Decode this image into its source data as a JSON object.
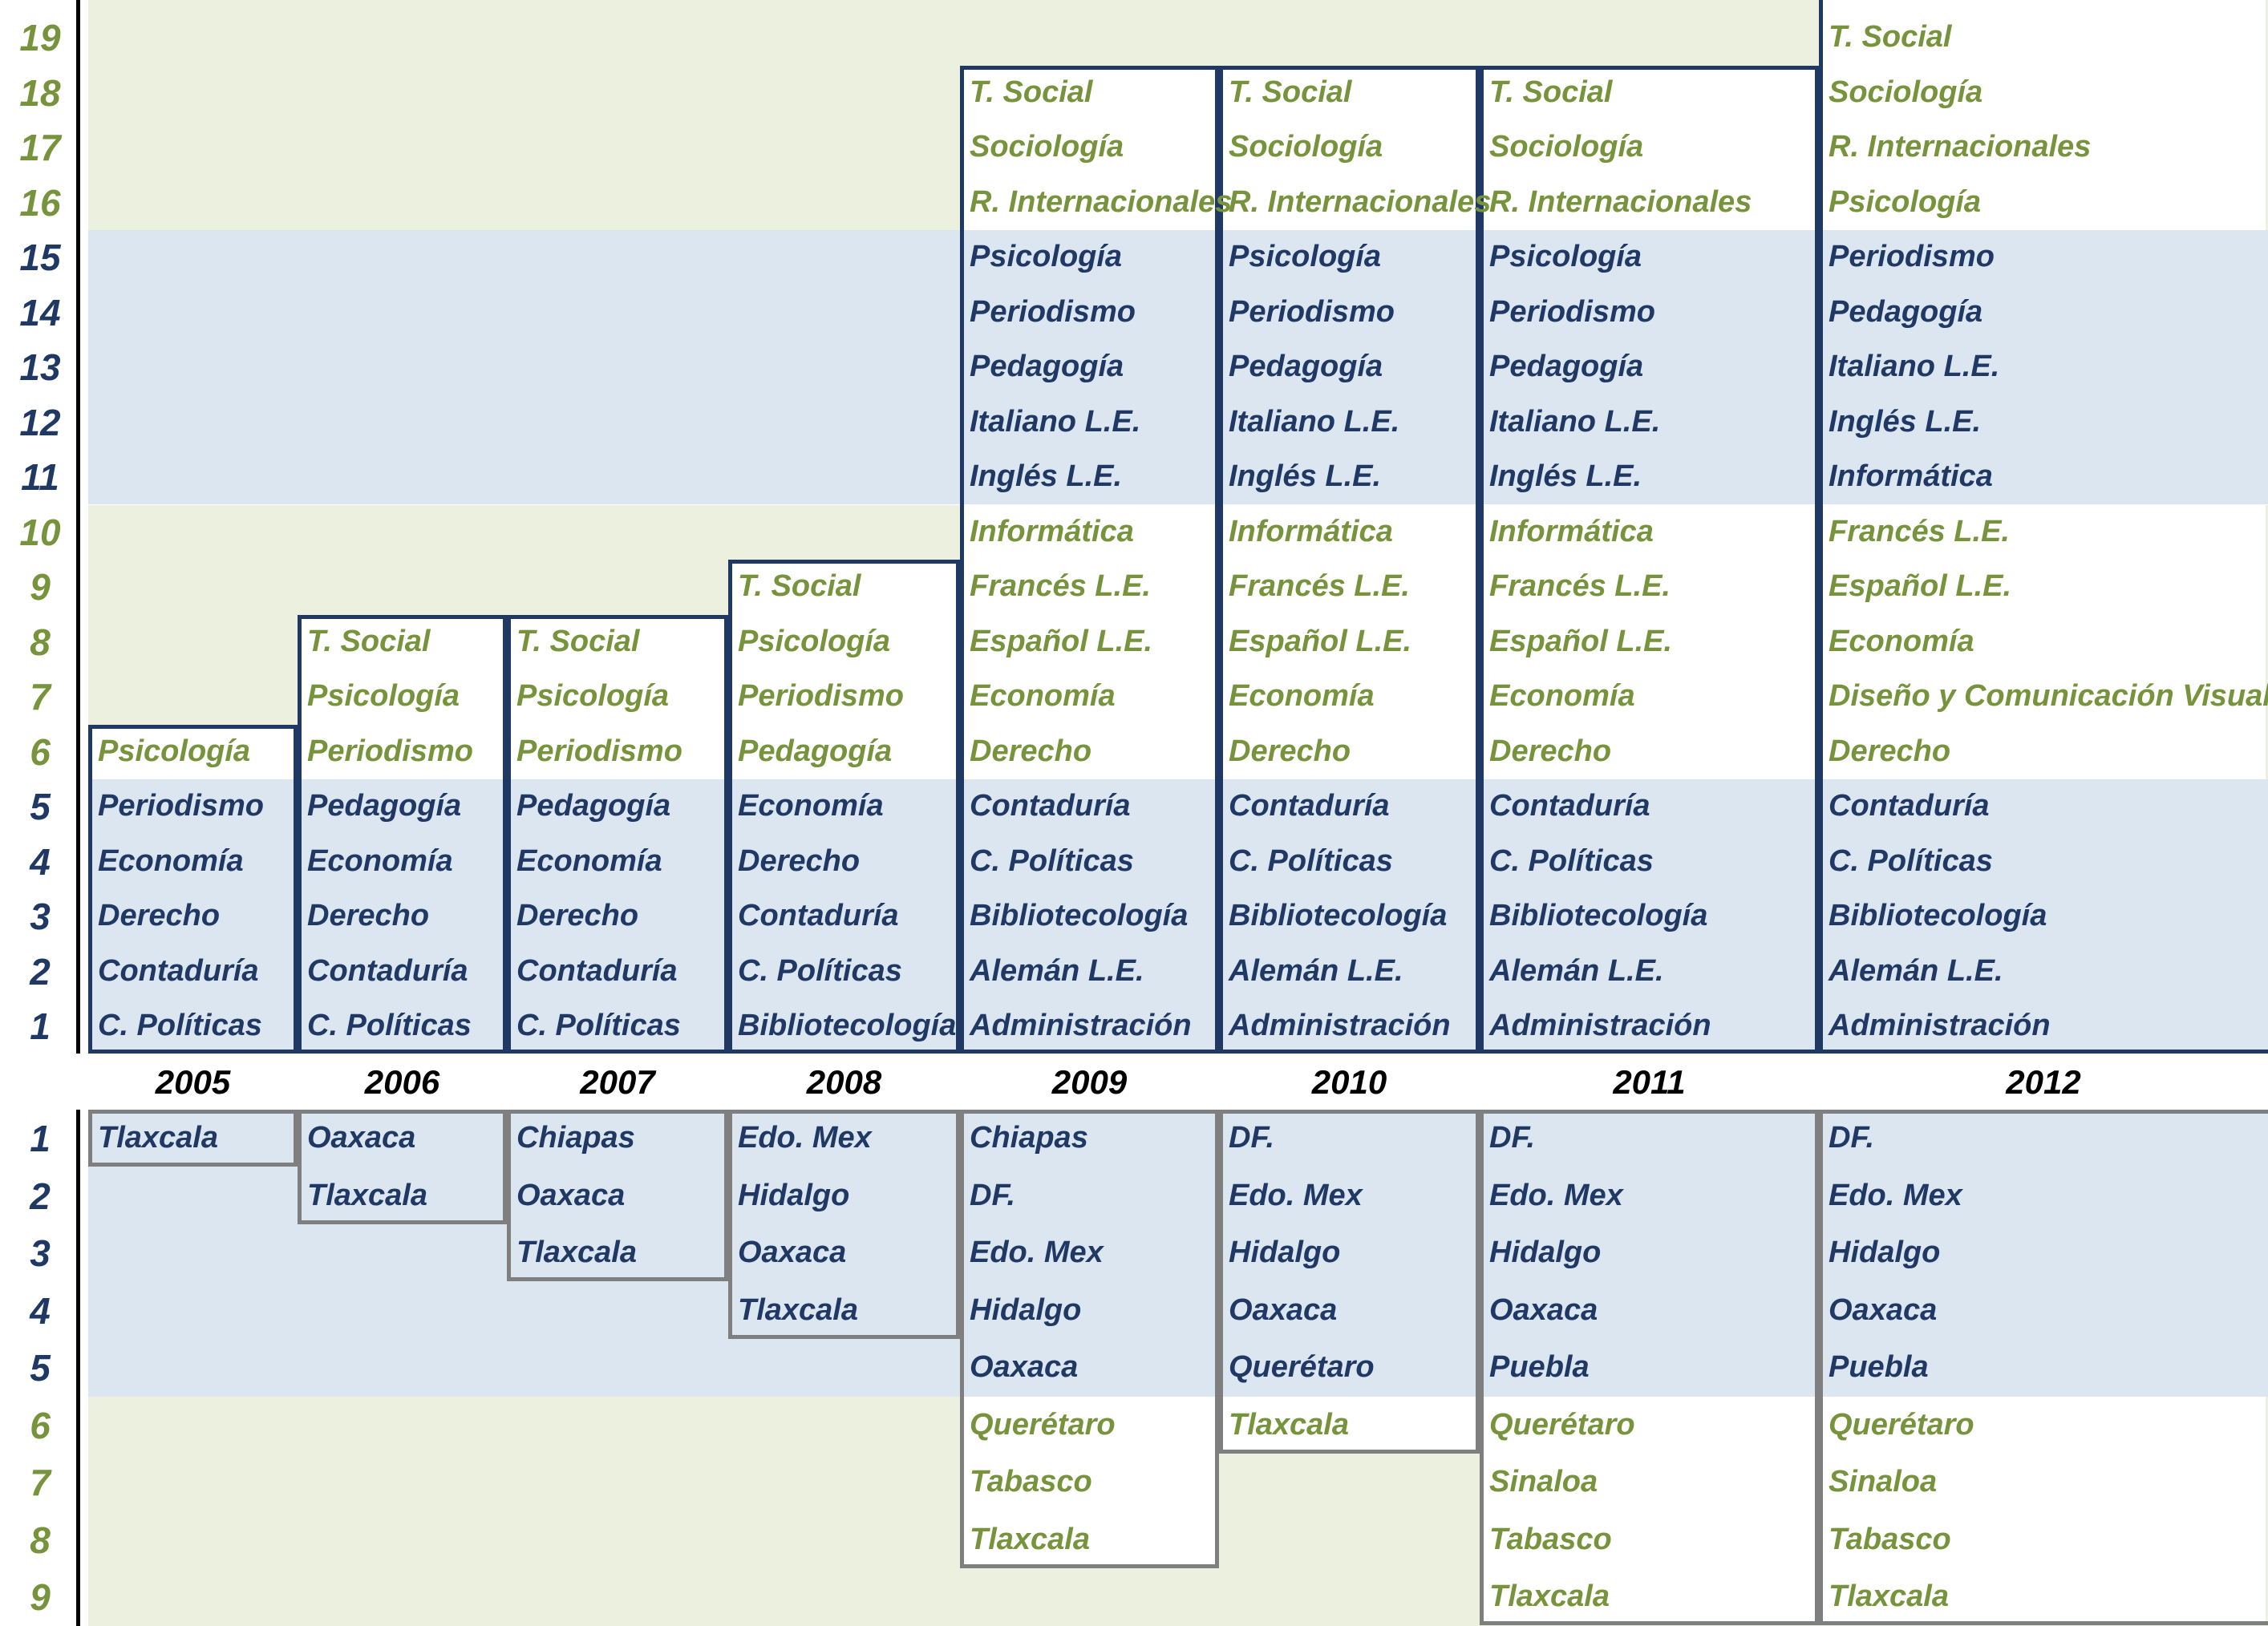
{
  "colors": {
    "green_text": "#77933c",
    "blue_text": "#1f3864",
    "green_band": "#ebf1de",
    "blue_band": "#dce6f0",
    "top_box_border": "#1f3864",
    "bottom_box_border": "#7f7f7f"
  },
  "years": [
    "2005",
    "2006",
    "2007",
    "2008",
    "2009",
    "2010",
    "2011",
    "2012"
  ],
  "top_row_numbers": [
    "19",
    "18",
    "17",
    "16",
    "15",
    "14",
    "13",
    "12",
    "11",
    "10",
    "9",
    "8",
    "7",
    "6",
    "5",
    "4",
    "3",
    "2",
    "1"
  ],
  "bottom_row_numbers": [
    "1",
    "2",
    "3",
    "4",
    "5",
    "6",
    "7",
    "8",
    "9"
  ],
  "careers": [
    [
      "C. Políticas",
      "Contaduría",
      "Derecho",
      "Economía",
      "Periodismo",
      "Psicología"
    ],
    [
      "C. Políticas",
      "Contaduría",
      "Derecho",
      "Economía",
      "Pedagogía",
      "Periodismo",
      "Psicología",
      "T. Social"
    ],
    [
      "C. Políticas",
      "Contaduría",
      "Derecho",
      "Economía",
      "Pedagogía",
      "Periodismo",
      "Psicología",
      "T. Social"
    ],
    [
      "Bibliotecología",
      "C. Políticas",
      "Contaduría",
      "Derecho",
      "Economía",
      "Pedagogía",
      "Periodismo",
      "Psicología",
      "T. Social"
    ],
    [
      "Administración",
      "Alemán L.E.",
      "Bibliotecología",
      "C. Políticas",
      "Contaduría",
      "Derecho",
      "Economía",
      "Español L.E.",
      "Francés L.E.",
      "Informática",
      "Inglés L.E.",
      "Italiano L.E.",
      "Pedagogía",
      "Periodismo",
      "Psicología",
      "R. Internacionales",
      "Sociología",
      "T. Social"
    ],
    [
      "Administración",
      "Alemán L.E.",
      "Bibliotecología",
      "C. Políticas",
      "Contaduría",
      "Derecho",
      "Economía",
      "Español L.E.",
      "Francés L.E.",
      "Informática",
      "Inglés L.E.",
      "Italiano L.E.",
      "Pedagogía",
      "Periodismo",
      "Psicología",
      "R. Internacionales",
      "Sociología",
      "T. Social"
    ],
    [
      "Administración",
      "Alemán L.E.",
      "Bibliotecología",
      "C. Políticas",
      "Contaduría",
      "Derecho",
      "Economía",
      "Español L.E.",
      "Francés L.E.",
      "Informática",
      "Inglés L.E.",
      "Italiano L.E.",
      "Pedagogía",
      "Periodismo",
      "Psicología",
      "R. Internacionales",
      "Sociología",
      "T. Social"
    ],
    [
      "Administración",
      "Alemán L.E.",
      "Bibliotecología",
      "C. Políticas",
      "Contaduría",
      "Derecho",
      "Diseño y Comunicación Visual",
      "Economía",
      "Español L.E.",
      "Francés L.E.",
      "Informática",
      "Inglés L.E.",
      "Italiano L.E.",
      "Pedagogía",
      "Periodismo",
      "Psicología",
      "R. Internacionales",
      "Sociología",
      "T. Social"
    ]
  ],
  "states": [
    [
      "Tlaxcala"
    ],
    [
      "Oaxaca",
      "Tlaxcala"
    ],
    [
      "Chiapas",
      "Oaxaca",
      "Tlaxcala"
    ],
    [
      "Edo. Mex",
      "Hidalgo",
      "Oaxaca",
      "Tlaxcala"
    ],
    [
      "Chiapas",
      "DF.",
      "Edo. Mex",
      "Hidalgo",
      "Oaxaca",
      "Querétaro",
      "Tabasco",
      "Tlaxcala"
    ],
    [
      "DF.",
      "Edo. Mex",
      "Hidalgo",
      "Oaxaca",
      "Querétaro",
      "Tlaxcala"
    ],
    [
      "DF.",
      "Edo. Mex",
      "Hidalgo",
      "Oaxaca",
      "Puebla",
      "Querétaro",
      "Sinaloa",
      "Tabasco",
      "Tlaxcala"
    ],
    [
      "DF.",
      "Edo. Mex",
      "Hidalgo",
      "Oaxaca",
      "Puebla",
      "Querétaro",
      "Sinaloa",
      "Tabasco",
      "Tlaxcala"
    ]
  ]
}
